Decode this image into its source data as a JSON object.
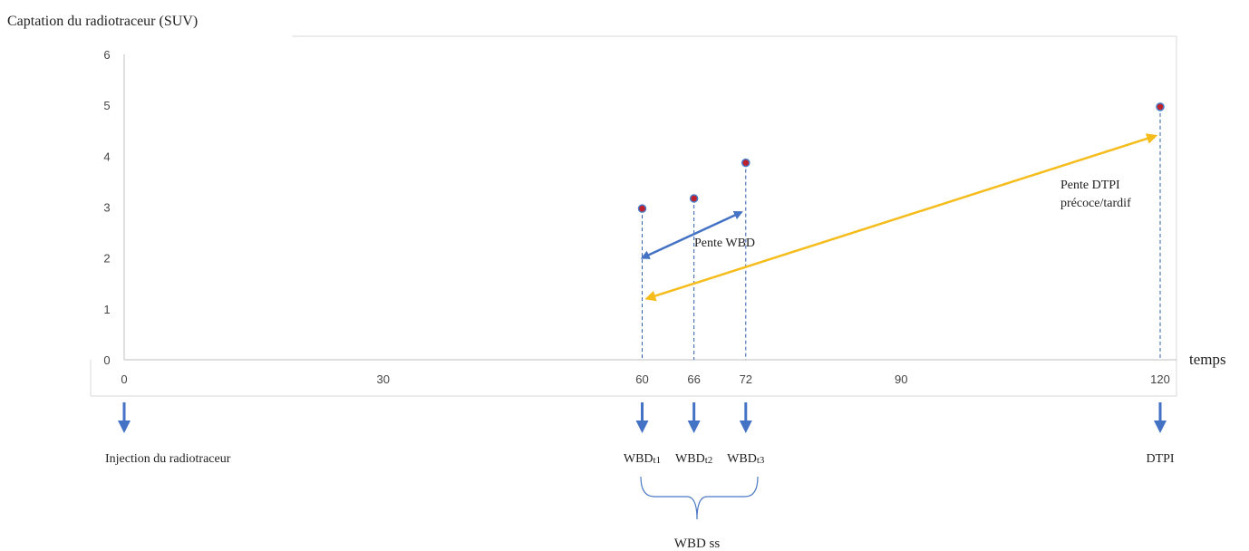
{
  "chart_data": {
    "type": "scatter",
    "ylabel": "Captation du radiotraceur (SUV)",
    "xlabel": "temps",
    "xlim": [
      0,
      120
    ],
    "ylim": [
      0,
      6
    ],
    "x_ticks": [
      "0",
      "30",
      "60",
      "66",
      "72",
      "90",
      "120"
    ],
    "x_tick_values": [
      0,
      30,
      60,
      66,
      72,
      90,
      120
    ],
    "y_ticks": [
      "0",
      "1",
      "2",
      "3",
      "4",
      "5",
      "6"
    ],
    "y_tick_values": [
      0,
      1,
      2,
      3,
      4,
      5,
      6
    ],
    "points": [
      {
        "x": 60,
        "y": 2.97
      },
      {
        "x": 66,
        "y": 3.17
      },
      {
        "x": 72,
        "y": 3.87
      },
      {
        "x": 120,
        "y": 4.97
      }
    ],
    "arrows": [
      {
        "label": "Pente WBD",
        "color": "#4472C4",
        "from": [
          60,
          2.0
        ],
        "to": [
          71.5,
          2.9
        ]
      },
      {
        "label_lines": [
          "Pente DTPI",
          "précoce/tardif"
        ],
        "color": "#F5BC1C",
        "from": [
          60.5,
          1.2
        ],
        "to": [
          119.5,
          4.4
        ]
      }
    ],
    "markers": [
      {
        "x": 0,
        "label_main": "Injection du radiotraceur",
        "label_sub": ""
      },
      {
        "x": 60,
        "label_main": "WBD",
        "label_sub": "t1"
      },
      {
        "x": 66,
        "label_main": "WBD",
        "label_sub": "t2"
      },
      {
        "x": 72,
        "label_main": "WBD",
        "label_sub": "t3"
      },
      {
        "x": 120,
        "label_main": "DTPI",
        "label_sub": ""
      }
    ],
    "brace_label": "WBD ss",
    "colors": {
      "point_fill": "#C0202A",
      "point_stroke": "#4A78C4",
      "dashed": "#2E5FA8",
      "marker_arrow": "#4472C4",
      "axis": "#BFBFBF"
    },
    "grid": false
  }
}
